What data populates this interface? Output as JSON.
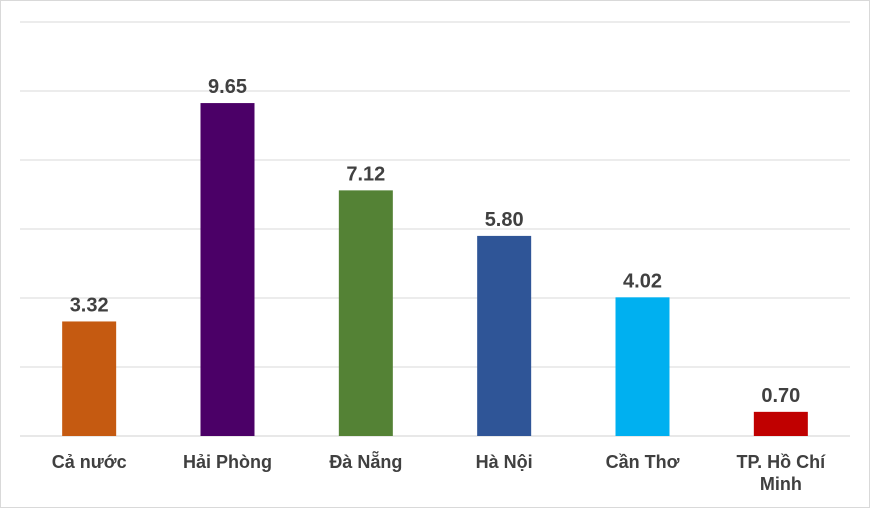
{
  "chart_data": {
    "type": "bar",
    "title": "",
    "xlabel": "",
    "ylabel": "",
    "categories": [
      "Cả nước",
      "Hải Phòng",
      "Đà Nẵng",
      "Hà Nội",
      "Cần Thơ",
      "TP. Hồ Chí Minh"
    ],
    "category_lines": [
      [
        "Cả nước"
      ],
      [
        "Hải Phòng"
      ],
      [
        "Đà Nẵng"
      ],
      [
        "Hà Nội"
      ],
      [
        "Cần Thơ"
      ],
      [
        "TP. Hồ Chí",
        "Minh"
      ]
    ],
    "values": [
      3.32,
      9.65,
      7.12,
      5.8,
      4.02,
      0.7
    ],
    "value_labels": [
      "3.32",
      "9.65",
      "7.12",
      "5.80",
      "4.02",
      "0.70"
    ],
    "colors": [
      "#c55a11",
      "#4b0067",
      "#548235",
      "#2f5597",
      "#00b0f0",
      "#c00000"
    ],
    "ylim": [
      0,
      12
    ],
    "grid_step": 2,
    "grid": true,
    "y_tick_labels_visible": false,
    "legend": "none"
  }
}
